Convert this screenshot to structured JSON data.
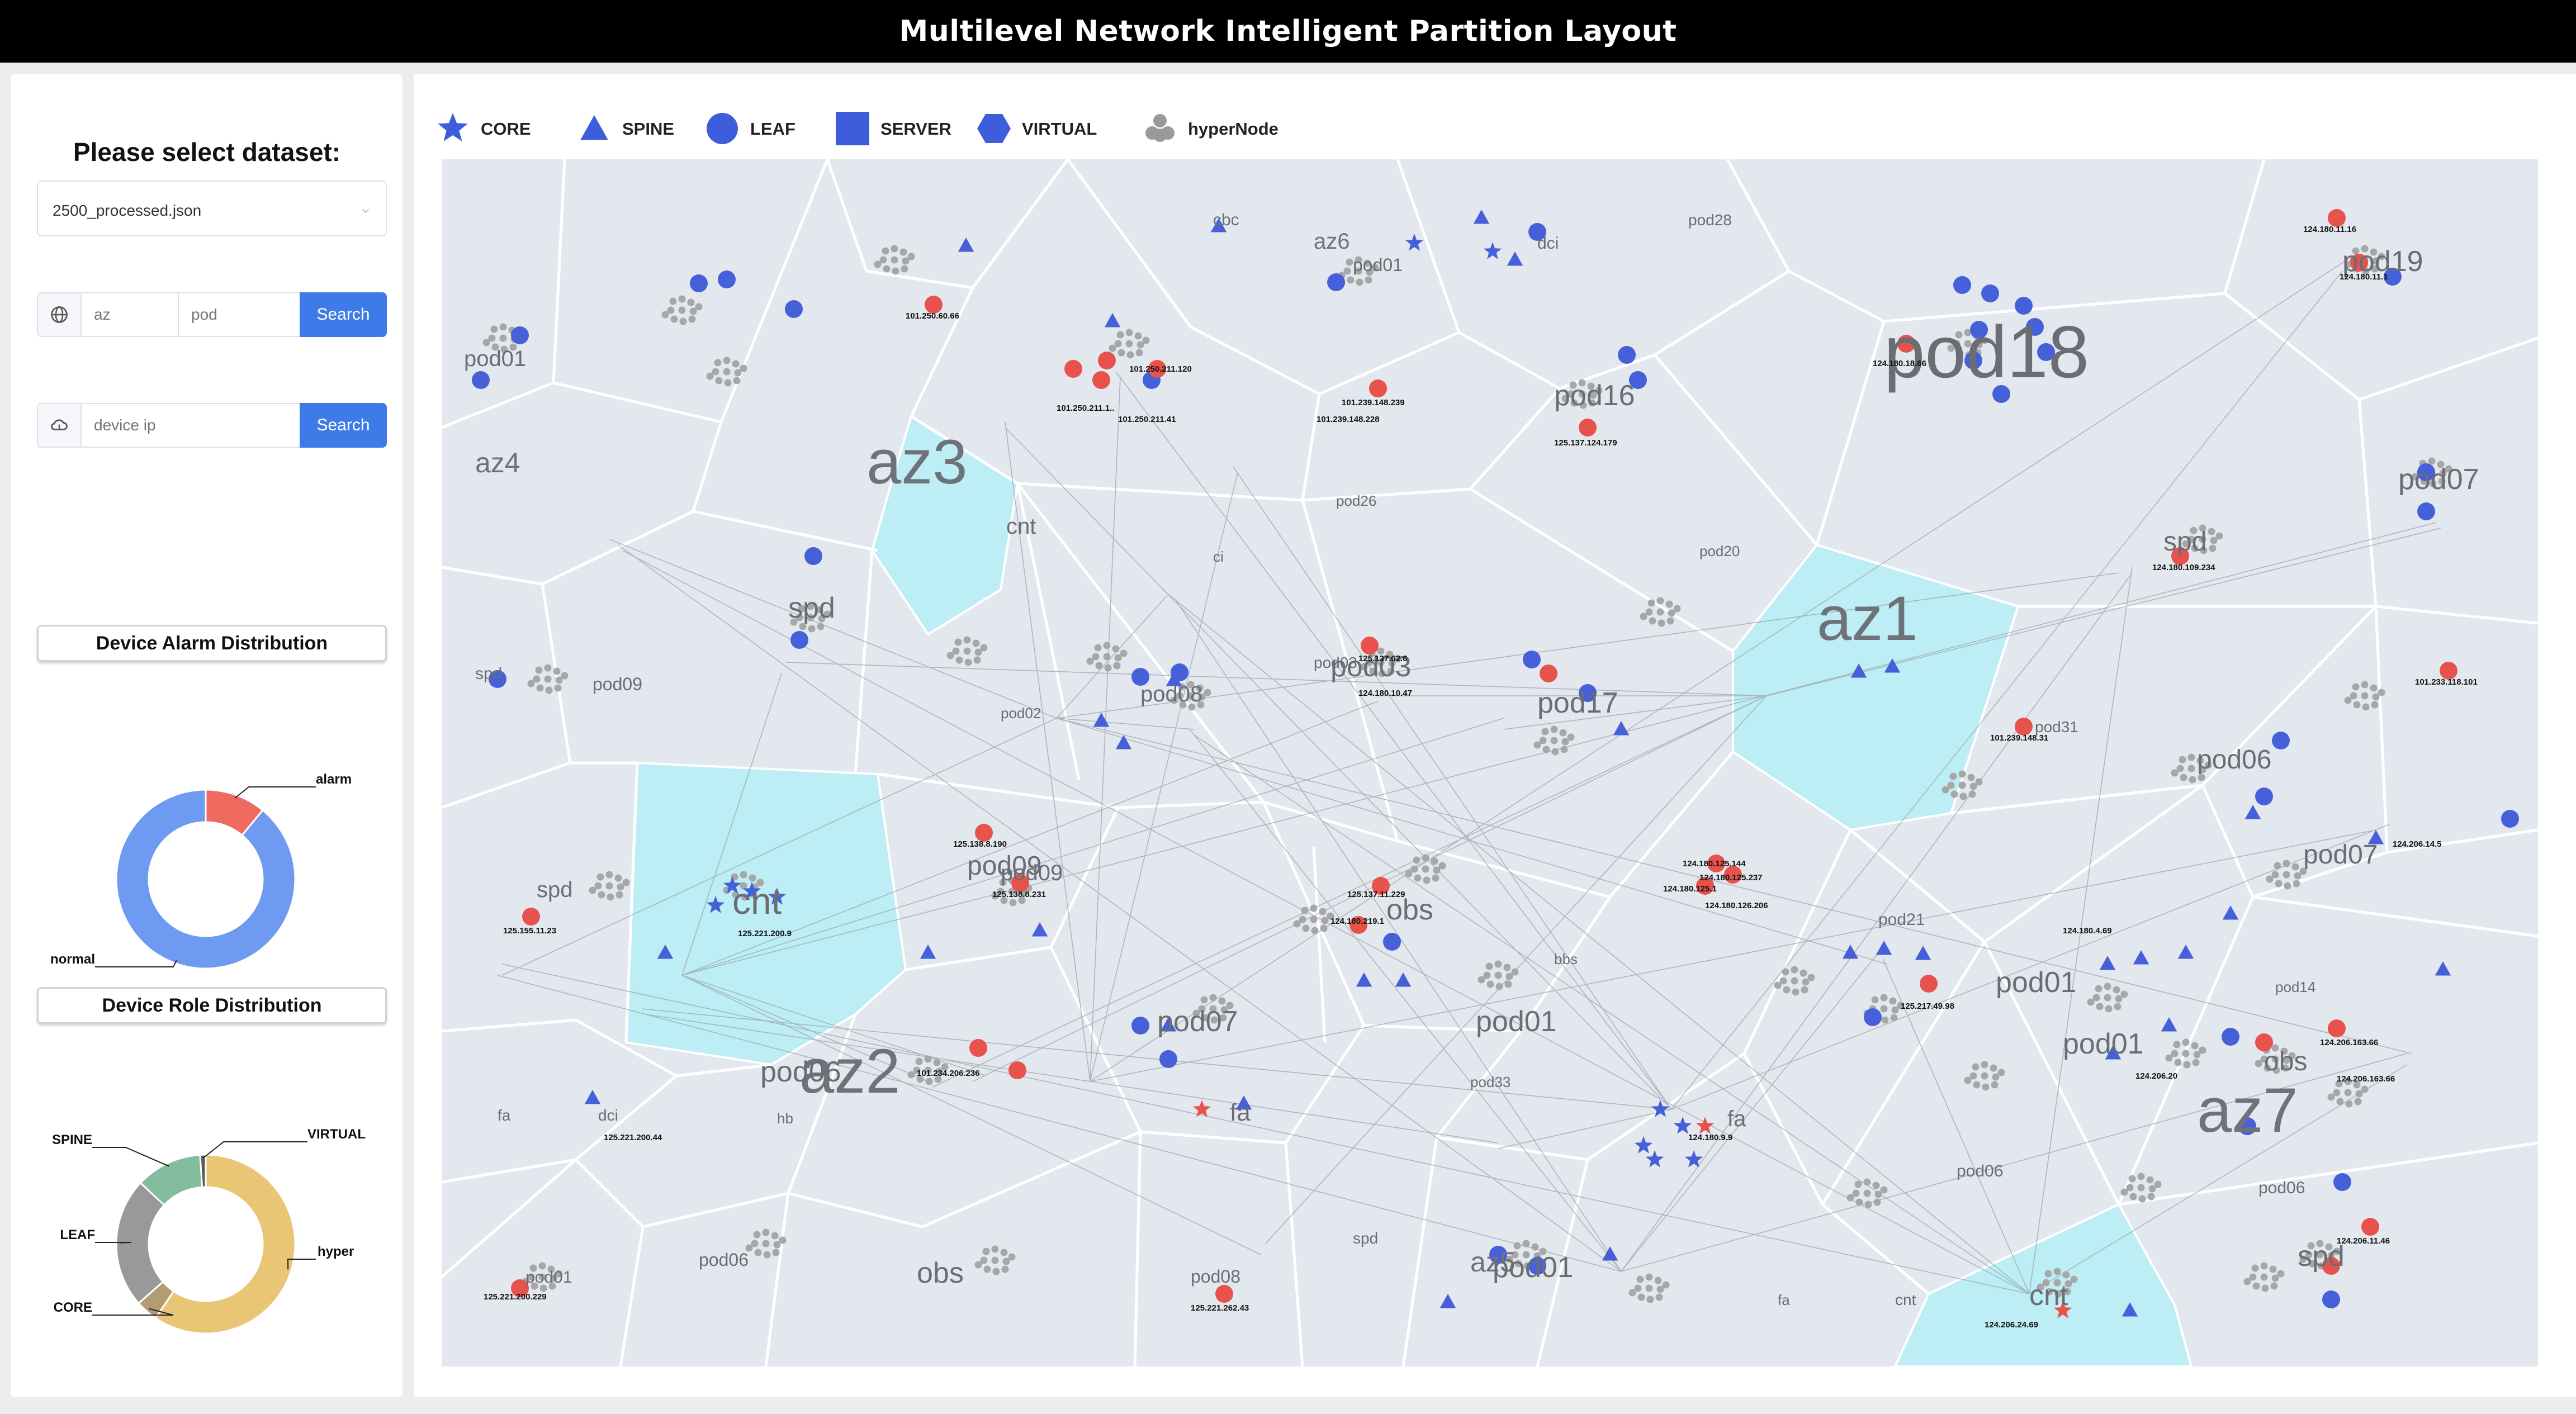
{
  "app": {
    "title": "Multilevel Network Intelligent Partition Layout"
  },
  "sidebar": {
    "select_label": "Please select dataset:",
    "dataset": {
      "value": "2500_processed.json"
    },
    "search1": {
      "az_placeholder": "az",
      "pod_placeholder": "pod",
      "button": "Search"
    },
    "search2": {
      "ip_placeholder": "device ip",
      "button": "Search"
    },
    "alarm_chart": {
      "title": "Device Alarm Distribution",
      "slices": [
        {
          "label": "alarm",
          "value": 0.11,
          "color": "#ef6b60"
        },
        {
          "label": "normal",
          "value": 0.89,
          "color": "#6e9af1"
        }
      ]
    },
    "role_chart": {
      "title": "Device Role Distribution",
      "slices": [
        {
          "label": "hyper",
          "value": 0.595,
          "color": "#e9c675"
        },
        {
          "label": "CORE",
          "value": 0.04,
          "color": "#b59b72"
        },
        {
          "label": "LEAF",
          "value": 0.235,
          "color": "#999999"
        },
        {
          "label": "SPINE",
          "value": 0.12,
          "color": "#82bd9e"
        },
        {
          "label": "VIRTUAL",
          "value": 0.01,
          "color": "#5b5b5b"
        }
      ]
    }
  },
  "legend": [
    {
      "label": "CORE",
      "icon": "star-icon",
      "color": "#3d5ddb"
    },
    {
      "label": "SPINE",
      "icon": "triangle-icon",
      "color": "#3d5ddb"
    },
    {
      "label": "LEAF",
      "icon": "circle-icon",
      "color": "#3d5ddb"
    },
    {
      "label": "SERVER",
      "icon": "square-icon",
      "color": "#3d5ddb"
    },
    {
      "label": "VIRTUAL",
      "icon": "hexagon-icon",
      "color": "#3d5ddb"
    },
    {
      "label": "hyperNode",
      "icon": "node-cluster-icon",
      "color": "#9a9a9a"
    }
  ],
  "colors": {
    "device": "#4660da",
    "alarm": "#e8524c",
    "hyper": "#a7a7a7",
    "region": "#e3e8ee",
    "region_border": "#ffffff",
    "highlight": "#bdeef5"
  },
  "map": {
    "az_labels": [
      "az1",
      "az2",
      "az3",
      "az4",
      "az5",
      "az6",
      "az7"
    ],
    "pod_labels": [
      "pod18",
      "pod19",
      "pod07",
      "spd",
      "pod06",
      "pod07",
      "pod01",
      "obs",
      "pod01",
      "spd",
      "cnt",
      "pod16",
      "pod17",
      "pod03",
      "pod08",
      "pod09",
      "pod06",
      "pod07",
      "pod01",
      "obs",
      "pod01",
      "pod09",
      "cnt",
      "spd",
      "pod01",
      "spd",
      "spd",
      "pod09",
      "obs",
      "pod06",
      "pod08",
      "pod01",
      "fa",
      "pod06",
      "pod21",
      "cnt",
      "fa",
      "dci",
      "fa",
      "cnt",
      "dci",
      "cbc",
      "pod01",
      "pod28",
      "pod26",
      "pod20",
      "pod33",
      "pod31",
      "pod02",
      "pod03",
      "bbs",
      "fa",
      "spd",
      "pod14",
      "pod06",
      "hb",
      "ci"
    ],
    "ip_labels": [
      "101.250.60.66",
      "101.250.211.120",
      "101.250.211.1..",
      "101.250.211.41",
      "101.239.148.239",
      "101.239.148.228",
      "125.137.124.179",
      "124.180.18.66",
      "124.180.11.16",
      "124.180.11.1",
      "124.180.109.234",
      "101.233.118.101",
      "101.239.148.31",
      "124.180.10.47",
      "125.137.62.6",
      "124.206.14.5",
      "124.180.4.69",
      "125.138.8.190",
      "125.138.8.231",
      "125.221.200.9",
      "125.155.11.23",
      "125.137.11.229",
      "124.180.219.1",
      "124.180.125.144",
      "124.180.125.237",
      "124.180.125.1",
      "124.180.126.206",
      "125.217.49.98",
      "124.206.163.66",
      "124.206.163.66",
      "124.206.20",
      "101.234.206.236",
      "125.221.200.44",
      "124.180.9.9",
      "125.221.200.229",
      "125.221.262.43",
      "124.206.11.46",
      "124.206.24.69"
    ]
  }
}
